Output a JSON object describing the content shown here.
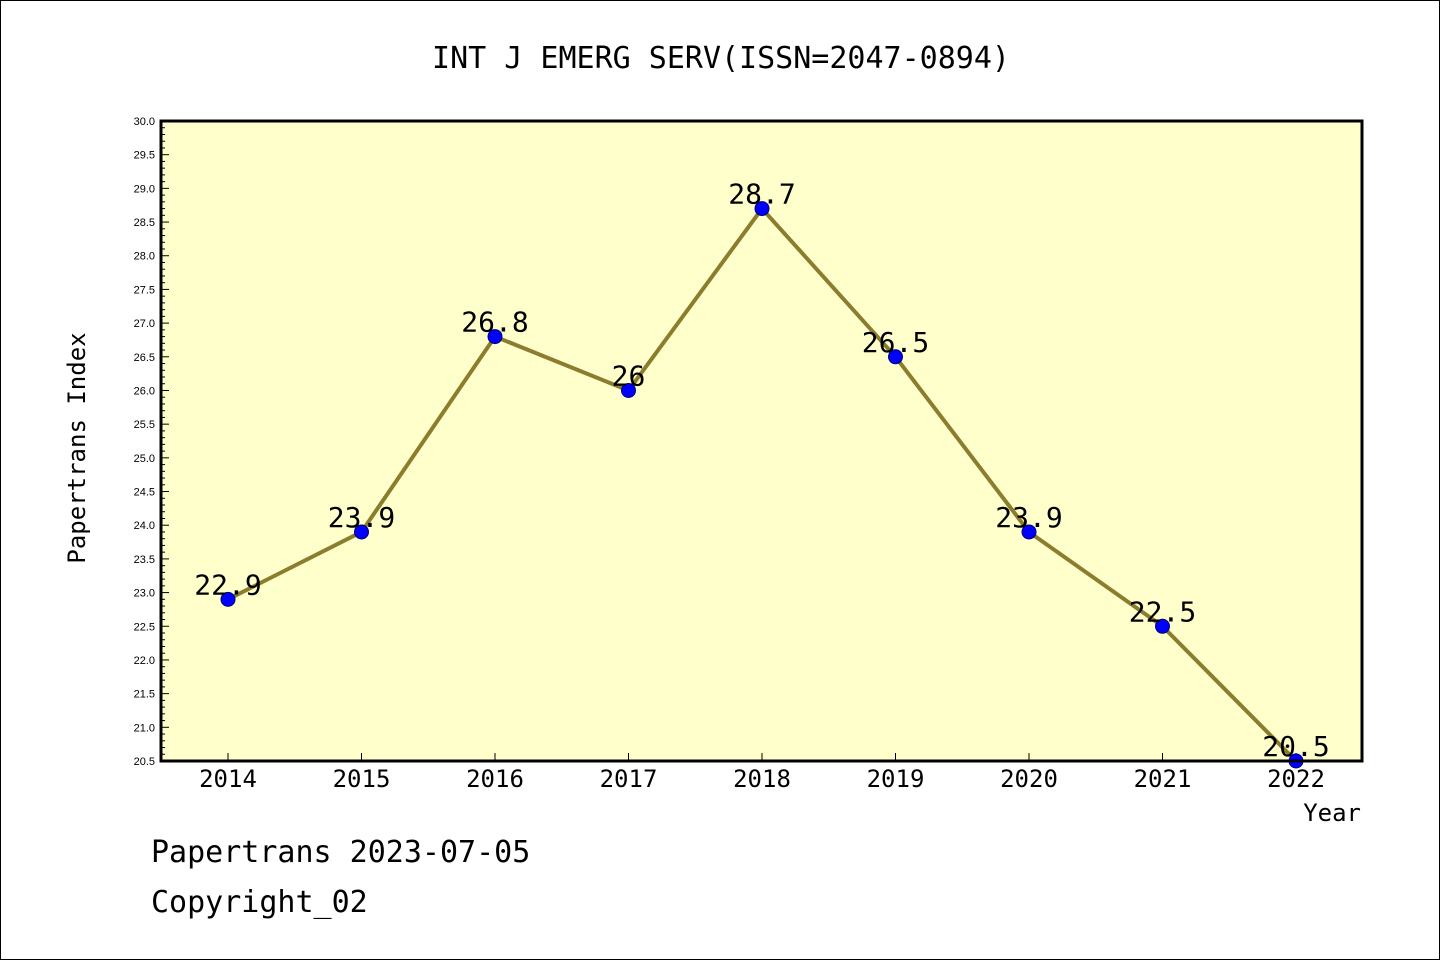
{
  "chart_data": {
    "type": "line",
    "title": "INT J EMERG SERV(ISSN=2047-0894)",
    "xlabel": "Year",
    "ylabel": "Papertrans Index",
    "categories": [
      "2014",
      "2015",
      "2016",
      "2017",
      "2018",
      "2019",
      "2020",
      "2021",
      "2022"
    ],
    "values": [
      22.9,
      23.9,
      26.8,
      26,
      28.7,
      26.5,
      23.9,
      22.5,
      20.5
    ],
    "data_labels": [
      "22.9",
      "23.9",
      "26.8",
      "26",
      "28.7",
      "26.5",
      "23.9",
      "22.5",
      "20.5"
    ],
    "ylim": [
      20.5,
      30.0
    ],
    "yticks": [
      "20.5",
      "21.0",
      "21.5",
      "22.0",
      "22.5",
      "23.0",
      "23.5",
      "24.0",
      "24.5",
      "25.0",
      "25.5",
      "26.0",
      "26.5",
      "27.0",
      "27.5",
      "28.0",
      "28.5",
      "29.0",
      "29.5",
      "30.0"
    ],
    "grid": false,
    "colors": {
      "plot_background": "#ffffcc",
      "line": "#8c7d2e",
      "marker": "#0000ff"
    }
  },
  "footer": {
    "line1": "Papertrans 2023-07-05",
    "line2": "Copyright_02"
  }
}
